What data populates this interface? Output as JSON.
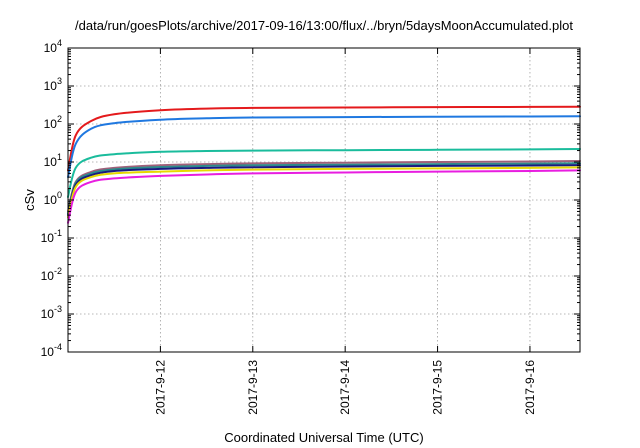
{
  "chart_data": {
    "type": "line",
    "title": "/data/run/goesPlots/archive/2017-09-16/13:00/flux/../bryn/5daysMoonAccumulated.plot",
    "xlabel": "Coordinated Universal Time (UTC)",
    "ylabel": "cSv",
    "x_type": "time",
    "xlim": [
      "2017-09-11T00:00",
      "2017-09-16T13:00"
    ],
    "ylim": [
      0.0001,
      10000
    ],
    "y_scale": "log",
    "grid": true,
    "legend": "none",
    "x_ticks": [
      "2017-9-12",
      "2017-9-13",
      "2017-9-14",
      "2017-9-15",
      "2017-9-16"
    ],
    "y_ticks": [
      {
        "base": "10",
        "exp": "-4"
      },
      {
        "base": "10",
        "exp": "-3"
      },
      {
        "base": "10",
        "exp": "-2"
      },
      {
        "base": "10",
        "exp": "-1"
      },
      {
        "base": "10",
        "exp": "0"
      },
      {
        "base": "10",
        "exp": "1"
      },
      {
        "base": "10",
        "exp": "2"
      },
      {
        "base": "10",
        "exp": "3"
      },
      {
        "base": "10",
        "exp": "4"
      }
    ],
    "x": [
      "2017-09-11T00:00",
      "2017-09-11T02:00",
      "2017-09-11T06:00",
      "2017-09-11T12:00",
      "2017-09-12T00:00",
      "2017-09-12T12:00",
      "2017-09-13T00:00",
      "2017-09-14T00:00",
      "2017-09-15T00:00",
      "2017-09-16T00:00",
      "2017-09-16T13:00"
    ],
    "series": [
      {
        "color": "#e41a1c",
        "values": [
          6,
          50,
          120,
          180,
          230,
          255,
          265,
          272,
          278,
          282,
          285
        ]
      },
      {
        "color": "#1f78e0",
        "values": [
          4,
          30,
          75,
          105,
          130,
          142,
          148,
          152,
          156,
          158,
          160
        ]
      },
      {
        "color": "#1abc9c",
        "values": [
          1.2,
          7,
          13,
          16,
          18.5,
          19.5,
          20,
          20.5,
          21,
          21.5,
          22
        ]
      },
      {
        "color": "#a0607a",
        "values": [
          0.5,
          3,
          5.5,
          7,
          8.2,
          8.8,
          9.2,
          9.6,
          10,
          10.3,
          10.6
        ]
      },
      {
        "color": "#2b8a8a",
        "values": [
          0.45,
          2.8,
          5,
          6.4,
          7.4,
          7.9,
          8.2,
          8.5,
          8.8,
          9.1,
          9.3
        ]
      },
      {
        "color": "#1a1a80",
        "values": [
          0.4,
          2.5,
          4.5,
          5.8,
          6.6,
          7.0,
          7.3,
          7.6,
          7.9,
          8.1,
          8.3
        ]
      },
      {
        "color": "#e6d800",
        "values": [
          0.35,
          2.2,
          4,
          5,
          5.6,
          6.0,
          6.3,
          6.6,
          6.8,
          7.0,
          7.2
        ]
      },
      {
        "color": "#e81ee0",
        "values": [
          0.25,
          1.6,
          3,
          3.7,
          4.3,
          4.7,
          5.0,
          5.3,
          5.6,
          5.8,
          6.0
        ]
      }
    ]
  }
}
